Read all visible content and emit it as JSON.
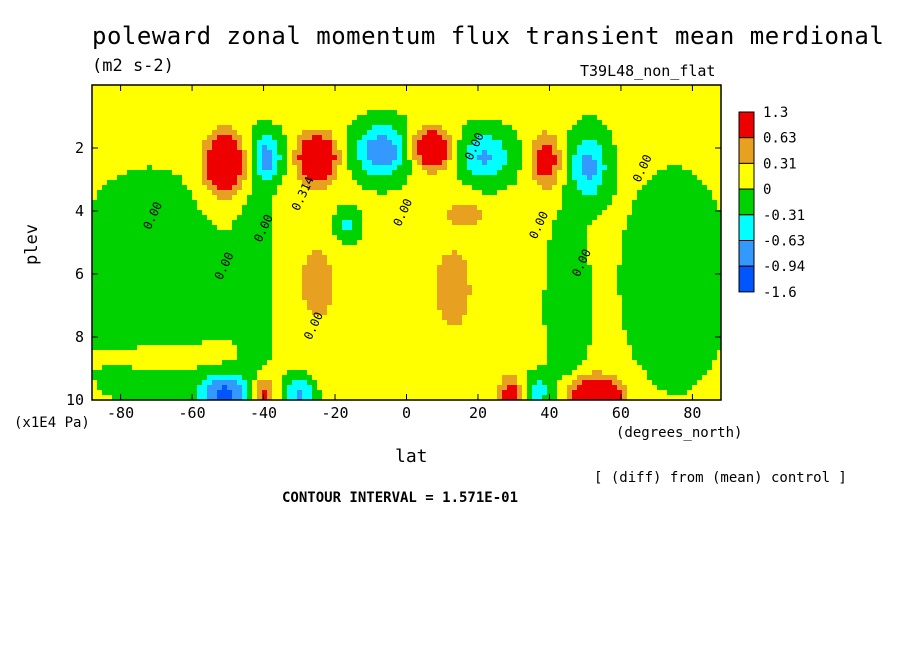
{
  "title": "poleward zonal momentum flux transient mean merdional",
  "units": "(m2 s-2)",
  "run_name": "T39L48_non_flat",
  "xlabel": "lat",
  "xunits": "(degrees_north)",
  "ylabel": "plev",
  "yunits": "(x1E4 Pa)",
  "diff_note": "[ (diff) from (mean) control ]",
  "contour_interval": "CONTOUR INTERVAL = 1.571E-01",
  "chart_data": {
    "type": "heatmap",
    "x": {
      "ticks": [
        -80,
        -60,
        -40,
        -20,
        0,
        20,
        40,
        60,
        80
      ],
      "lim": [
        -88,
        88
      ]
    },
    "y": {
      "ticks": [
        2,
        4,
        6,
        8,
        10
      ],
      "lim": [
        0,
        10
      ],
      "inverted": true
    },
    "contour_labels": [
      {
        "text": "0.00",
        "lat": -70,
        "plev": 4.2
      },
      {
        "text": "0.00",
        "lat": -39,
        "plev": 4.6
      },
      {
        "text": "0.00",
        "lat": -50,
        "plev": 5.8
      },
      {
        "text": "0.314",
        "lat": -28,
        "plev": 3.5
      },
      {
        "text": "0.00",
        "lat": -25,
        "plev": 7.7
      },
      {
        "text": "0.00",
        "lat": 0,
        "plev": 4.1
      },
      {
        "text": "0.00",
        "lat": 20,
        "plev": 2.0
      },
      {
        "text": "0.00",
        "lat": 38,
        "plev": 4.5
      },
      {
        "text": "0.00",
        "lat": 50,
        "plev": 5.7
      },
      {
        "text": "0.00",
        "lat": 67,
        "plev": 2.7
      }
    ],
    "colorbar": {
      "levels": [
        "1.3",
        "0.63",
        "0.31",
        "0",
        "-0.31",
        "-0.63",
        "-0.94",
        "-1.6"
      ],
      "colors": [
        "#ee0000",
        "#e8a020",
        "#ffff00",
        "#00d200",
        "#00ffff",
        "#3399ff",
        "#0055ff"
      ]
    },
    "features": [
      {
        "lat": -51,
        "plev": 2.5,
        "amp": 1.6,
        "sx": 5,
        "sy": 0.9
      },
      {
        "lat": -39,
        "plev": 2.3,
        "amp": -0.85,
        "sx": 4,
        "sy": 0.7
      },
      {
        "lat": -25,
        "plev": 2.3,
        "amp": 1.5,
        "sx": 5,
        "sy": 0.7
      },
      {
        "lat": -7,
        "plev": 2.1,
        "amp": -1.0,
        "sx": 7,
        "sy": 0.8
      },
      {
        "lat": 7,
        "plev": 2.0,
        "amp": 1.3,
        "sx": 5,
        "sy": 0.6
      },
      {
        "lat": 22,
        "plev": 2.3,
        "amp": -0.75,
        "sx": 7,
        "sy": 0.8
      },
      {
        "lat": 39,
        "plev": 2.4,
        "amp": 0.9,
        "sx": 4,
        "sy": 0.8
      },
      {
        "lat": 51,
        "plev": 2.6,
        "amp": -0.8,
        "sx": 5,
        "sy": 1.0
      },
      {
        "lat": -17,
        "plev": 4.5,
        "amp": -0.5,
        "sx": 4,
        "sy": 0.6
      },
      {
        "lat": 17,
        "plev": 4.1,
        "amp": 0.45,
        "sx": 5,
        "sy": 0.3
      },
      {
        "lat": -51,
        "plev": 9.8,
        "amp": -1.1,
        "sx": 7,
        "sy": 0.6
      },
      {
        "lat": -40,
        "plev": 9.8,
        "amp": 0.8,
        "sx": 3,
        "sy": 0.6
      },
      {
        "lat": -30,
        "plev": 9.8,
        "amp": -0.8,
        "sx": 4,
        "sy": 0.6
      },
      {
        "lat": 29,
        "plev": 9.8,
        "amp": 0.8,
        "sx": 3,
        "sy": 0.6
      },
      {
        "lat": 37,
        "plev": 9.7,
        "amp": -0.5,
        "sx": 4,
        "sy": 0.5
      },
      {
        "lat": 53,
        "plev": 9.9,
        "amp": 1.5,
        "sx": 7,
        "sy": 0.6
      },
      {
        "lat": -72,
        "plev": 6.5,
        "amp": -0.32,
        "sx": 18,
        "sy": 3.0
      },
      {
        "lat": 75,
        "plev": 6.2,
        "amp": -0.32,
        "sx": 12,
        "sy": 2.8
      },
      {
        "lat": -42,
        "plev": 6.5,
        "amp": -0.33,
        "sx": 5,
        "sy": 3.0
      },
      {
        "lat": 45,
        "plev": 7.0,
        "amp": -0.33,
        "sx": 5,
        "sy": 2.5
      },
      {
        "lat": -25,
        "plev": 6.3,
        "amp": 0.3,
        "sx": 10,
        "sy": 2.5
      },
      {
        "lat": 13,
        "plev": 6.5,
        "amp": 0.3,
        "sx": 11,
        "sy": 2.8
      },
      {
        "lat": -68,
        "plev": 8.6,
        "amp": 0.3,
        "sx": 15,
        "sy": 0.4
      }
    ],
    "background": 0.06
  }
}
